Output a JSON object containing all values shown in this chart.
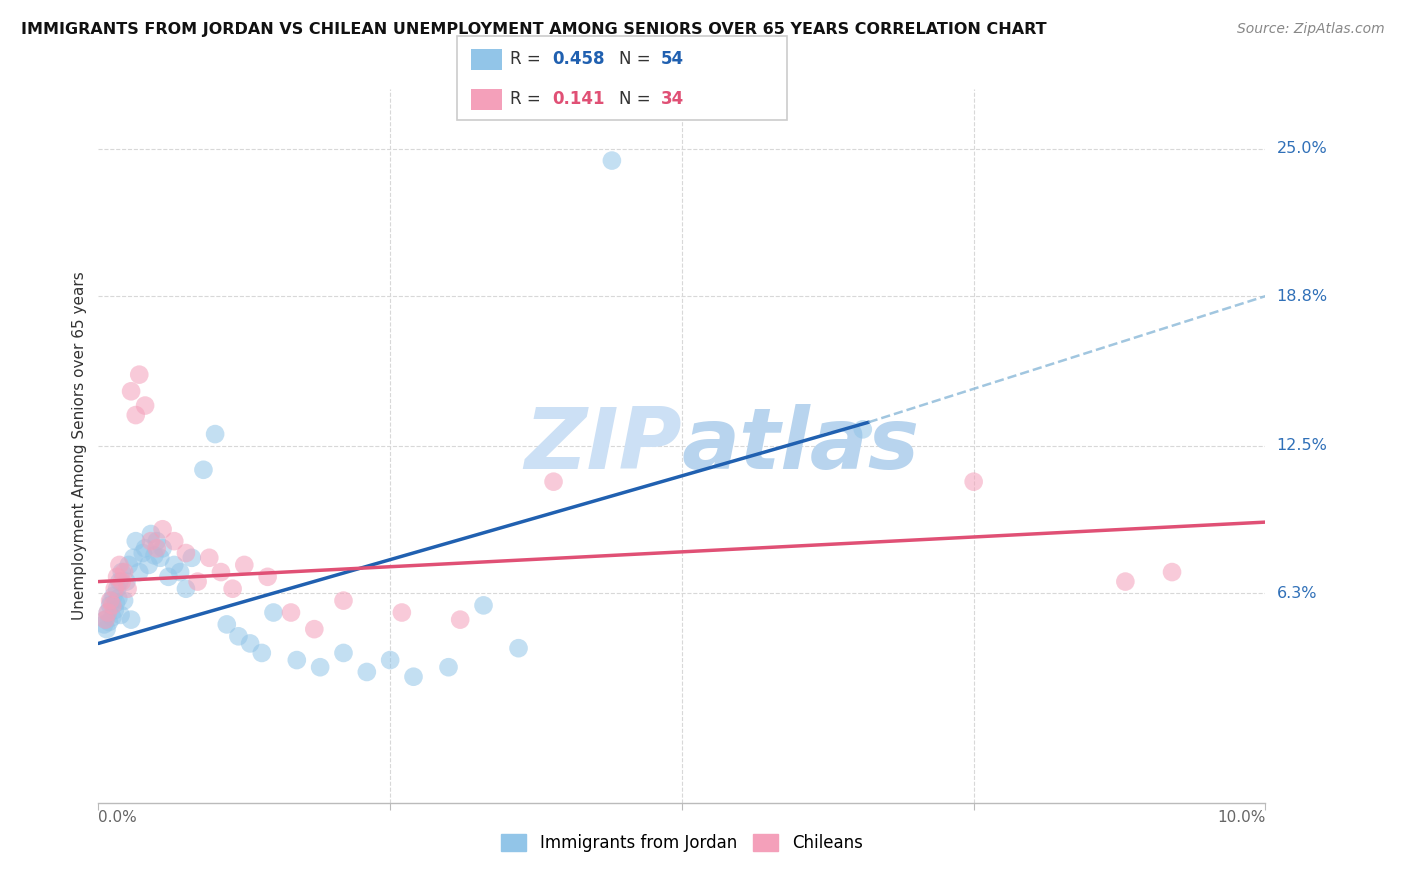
{
  "title": "IMMIGRANTS FROM JORDAN VS CHILEAN UNEMPLOYMENT AMONG SENIORS OVER 65 YEARS CORRELATION CHART",
  "source": "Source: ZipAtlas.com",
  "ylabel": "Unemployment Among Seniors over 65 years",
  "y_ticks_right": [
    6.3,
    12.5,
    18.8,
    25.0
  ],
  "y_ticks_right_labels": [
    "6.3%",
    "12.5%",
    "18.8%",
    "25.0%"
  ],
  "xlim": [
    0.0,
    10.0
  ],
  "ylim": [
    -2.5,
    27.5
  ],
  "legend_labels_bottom": [
    "Immigrants from Jordan",
    "Chileans"
  ],
  "blue_color": "#92c5e8",
  "pink_color": "#f4a0ba",
  "blue_line_color": "#2060b0",
  "pink_line_color": "#e05075",
  "watermark_color": "#cce0f5",
  "blue_scatter_x": [
    0.05,
    0.06,
    0.07,
    0.08,
    0.09,
    0.1,
    0.11,
    0.12,
    0.13,
    0.14,
    0.15,
    0.16,
    0.17,
    0.18,
    0.19,
    0.2,
    0.22,
    0.24,
    0.26,
    0.28,
    0.3,
    0.32,
    0.35,
    0.38,
    0.4,
    0.43,
    0.45,
    0.48,
    0.5,
    0.53,
    0.55,
    0.6,
    0.65,
    0.7,
    0.75,
    0.8,
    0.9,
    1.0,
    1.1,
    1.2,
    1.3,
    1.4,
    1.5,
    1.7,
    1.9,
    2.1,
    2.3,
    2.5,
    2.7,
    3.0,
    3.3,
    3.6,
    4.4,
    6.55
  ],
  "blue_scatter_y": [
    5.0,
    5.2,
    4.8,
    5.5,
    5.1,
    5.8,
    6.0,
    5.3,
    6.2,
    5.6,
    5.9,
    6.5,
    6.1,
    6.8,
    5.4,
    7.2,
    6.0,
    6.8,
    7.5,
    5.2,
    7.8,
    8.5,
    7.2,
    8.0,
    8.2,
    7.5,
    8.8,
    7.9,
    8.5,
    7.8,
    8.2,
    7.0,
    7.5,
    7.2,
    6.5,
    7.8,
    11.5,
    13.0,
    5.0,
    4.5,
    4.2,
    3.8,
    5.5,
    3.5,
    3.2,
    3.8,
    3.0,
    3.5,
    2.8,
    3.2,
    5.8,
    4.0,
    24.5,
    13.2
  ],
  "pink_scatter_x": [
    0.06,
    0.08,
    0.1,
    0.12,
    0.14,
    0.16,
    0.18,
    0.2,
    0.22,
    0.25,
    0.28,
    0.32,
    0.35,
    0.4,
    0.45,
    0.5,
    0.55,
    0.65,
    0.75,
    0.85,
    0.95,
    1.05,
    1.15,
    1.25,
    1.45,
    1.65,
    1.85,
    2.1,
    2.6,
    3.1,
    3.9,
    7.5,
    8.8,
    9.2
  ],
  "pink_scatter_y": [
    5.2,
    5.5,
    6.0,
    5.8,
    6.5,
    7.0,
    7.5,
    6.8,
    7.2,
    6.5,
    14.8,
    13.8,
    15.5,
    14.2,
    8.5,
    8.2,
    9.0,
    8.5,
    8.0,
    6.8,
    7.8,
    7.2,
    6.5,
    7.5,
    7.0,
    5.5,
    4.8,
    6.0,
    5.5,
    5.2,
    11.0,
    11.0,
    6.8,
    7.2
  ],
  "blue_trend_x0": 0.0,
  "blue_trend_y0": 4.2,
  "blue_trend_x1": 6.6,
  "blue_trend_y1": 13.5,
  "blue_dashed_x0": 6.6,
  "blue_dashed_y0": 13.5,
  "blue_dashed_x1": 10.0,
  "blue_dashed_y1": 18.8,
  "pink_trend_x0": 0.0,
  "pink_trend_y0": 6.8,
  "pink_trend_x1": 10.0,
  "pink_trend_y1": 9.3,
  "legend_r1": "0.458",
  "legend_n1": "54",
  "legend_r2": "0.141",
  "legend_n2": "34"
}
